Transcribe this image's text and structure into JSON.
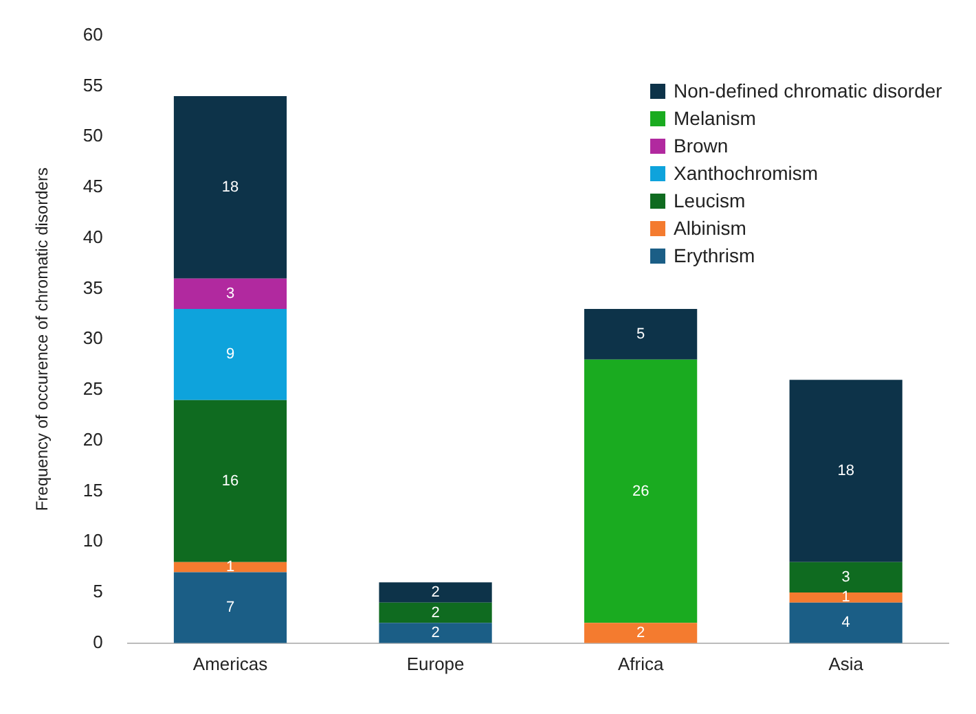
{
  "chart_data": {
    "type": "bar",
    "stacked": true,
    "ylabel": "Frequency of occurence of chromatic disorders",
    "categories": [
      "Americas",
      "Europe",
      "Africa",
      "Asia"
    ],
    "series": [
      {
        "name": "Erythrism",
        "color": "#1b5e86",
        "values": [
          7,
          2,
          null,
          4
        ]
      },
      {
        "name": "Albinism",
        "color": "#f47b2f",
        "values": [
          1,
          null,
          2,
          1
        ]
      },
      {
        "name": "Leucism",
        "color": "#0f6b20",
        "values": [
          16,
          2,
          null,
          3
        ]
      },
      {
        "name": "Xanthochromism",
        "color": "#0ea3dc",
        "values": [
          9,
          null,
          null,
          null
        ]
      },
      {
        "name": "Brown",
        "color": "#b1299f",
        "values": [
          3,
          null,
          null,
          null
        ]
      },
      {
        "name": "Melanism",
        "color": "#1aab20",
        "values": [
          null,
          null,
          26,
          null
        ]
      },
      {
        "name": "Non-defined chromatic disorder",
        "color": "#0d3349",
        "values": [
          18,
          2,
          5,
          18
        ]
      }
    ],
    "ylim": [
      0,
      60
    ],
    "yticks": [
      0,
      5,
      10,
      15,
      20,
      25,
      30,
      35,
      40,
      45,
      50,
      55,
      60
    ],
    "grid": false,
    "legend": "top right",
    "data_labels": true
  }
}
